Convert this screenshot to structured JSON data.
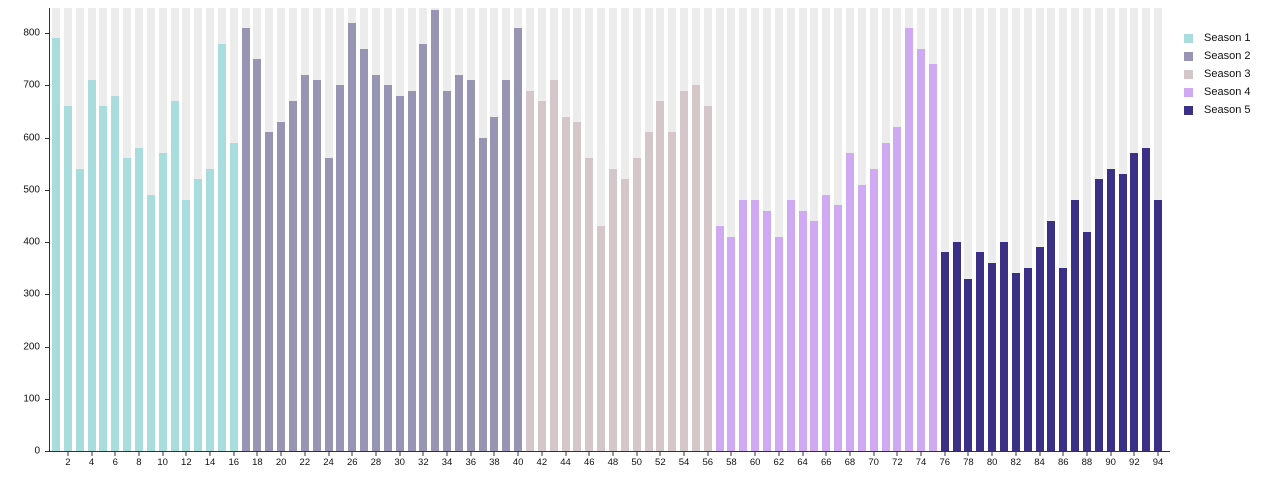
{
  "chart_data": {
    "type": "bar",
    "title": "",
    "xlabel": "",
    "ylabel": "",
    "ylim": [
      0,
      848
    ],
    "y_ticks": [
      0,
      100,
      200,
      300,
      400,
      500,
      600,
      700,
      800
    ],
    "x_ticks": [
      2,
      4,
      6,
      8,
      10,
      12,
      14,
      16,
      18,
      20,
      22,
      24,
      26,
      28,
      30,
      32,
      34,
      36,
      38,
      40,
      42,
      44,
      46,
      48,
      50,
      52,
      54,
      56,
      58,
      60,
      62,
      64,
      66,
      68,
      70,
      72,
      74,
      76,
      78,
      80,
      82,
      84,
      86,
      88,
      90,
      92,
      94
    ],
    "grid": "striped-column-background",
    "background_stripe_color": "#ececec",
    "legend_position": "top-right-outside",
    "categories_note": "episode numbers 1-94",
    "seasons": [
      {
        "name": "Season 1",
        "color": "#a9dcdc",
        "start_episode": 1,
        "values": [
          790,
          660,
          540,
          710,
          660,
          680,
          560,
          580,
          490,
          570,
          670,
          480,
          520,
          540,
          780,
          590
        ]
      },
      {
        "name": "Season 2",
        "color": "#9795b3",
        "start_episode": 17,
        "values": [
          810,
          750,
          610,
          630,
          670,
          720,
          710,
          560,
          700,
          820,
          770,
          720,
          700,
          680,
          690,
          780,
          845,
          690,
          720,
          710,
          600,
          640,
          710,
          810
        ]
      },
      {
        "name": "Season 3",
        "color": "#d5c7c9",
        "start_episode": 41,
        "values": [
          690,
          670,
          710,
          640,
          630,
          560,
          430,
          540,
          520,
          560,
          610,
          670,
          610,
          690,
          700,
          660
        ]
      },
      {
        "name": "Season 4",
        "color": "#cfa9f2",
        "start_episode": 57,
        "values": [
          430,
          410,
          480,
          480,
          460,
          410,
          480,
          460,
          440,
          490,
          470,
          570,
          510,
          540,
          590,
          620,
          810,
          770,
          740
        ]
      },
      {
        "name": "Season 5",
        "color": "#3a3187",
        "start_episode": 76,
        "values": [
          380,
          400,
          330,
          380,
          360,
          400,
          340,
          350,
          390,
          440,
          350,
          480,
          420,
          520,
          540,
          530,
          570,
          580,
          480
        ]
      }
    ]
  }
}
